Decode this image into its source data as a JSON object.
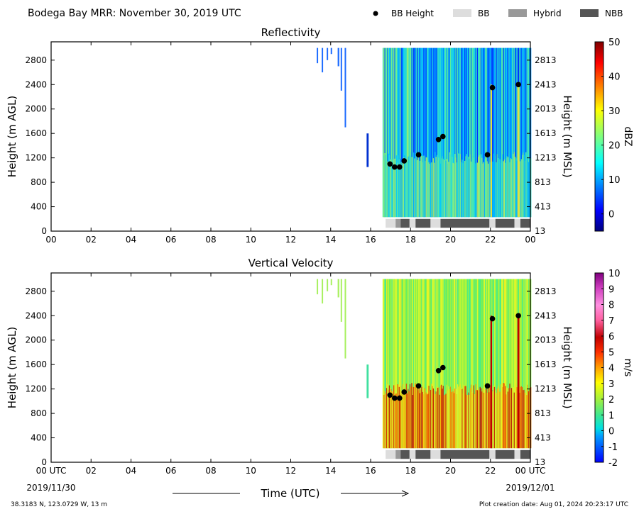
{
  "header": {
    "title": "Bodega Bay MRR:  November 30, 2019 UTC",
    "legend": [
      {
        "label": "BB Height",
        "kind": "marker",
        "color": "#000000"
      },
      {
        "label": "BB",
        "kind": "swatch",
        "color": "#dddddd"
      },
      {
        "label": "Hybrid",
        "kind": "swatch",
        "color": "#999999"
      },
      {
        "label": "NBB",
        "kind": "swatch",
        "color": "#555555"
      }
    ]
  },
  "footer": {
    "location": "38.3183 N, 123.0729 W, 13 m",
    "creation": "Plot creation date: Aug 01, 2024 20:23:17 UTC",
    "time_label": "Time (UTC)",
    "start_date": "2019/11/30",
    "end_date": "2019/12/01"
  },
  "chart_data": [
    {
      "type": "heatmap",
      "title": "Reflectivity",
      "ylabel": "Height (m AGL)",
      "ylabel_right": "Height (m MSL)",
      "colorbar_label": "dBZ",
      "x_ticks": [
        "00",
        "02",
        "04",
        "06",
        "08",
        "10",
        "12",
        "14",
        "16",
        "18",
        "20",
        "22",
        "00"
      ],
      "xlim": [
        0,
        24
      ],
      "y_ticks": [
        0,
        400,
        800,
        1200,
        1600,
        2000,
        2400,
        2800
      ],
      "y_ticks_right": [
        13,
        413,
        813,
        1213,
        1613,
        2013,
        2413,
        2813
      ],
      "ylim": [
        0,
        3100
      ],
      "colorbar_range": [
        -5,
        50
      ],
      "colorbar_ticks": [
        0,
        10,
        20,
        30,
        40,
        50
      ],
      "bb_height": [
        {
          "x": 16.97,
          "y": 1100
        },
        {
          "x": 17.2,
          "y": 1050
        },
        {
          "x": 17.45,
          "y": 1050
        },
        {
          "x": 17.68,
          "y": 1150
        },
        {
          "x": 18.4,
          "y": 1250
        },
        {
          "x": 19.4,
          "y": 1500
        },
        {
          "x": 19.62,
          "y": 1550
        },
        {
          "x": 21.85,
          "y": 1250
        },
        {
          "x": 22.1,
          "y": 2350
        },
        {
          "x": 23.4,
          "y": 2400
        }
      ],
      "bb_type_bar": [
        {
          "start": 16.75,
          "end": 17.25,
          "class": "BB"
        },
        {
          "start": 17.25,
          "end": 17.5,
          "class": "Hybrid"
        },
        {
          "start": 17.5,
          "end": 17.95,
          "class": "NBB"
        },
        {
          "start": 17.95,
          "end": 18.25,
          "class": "BB"
        },
        {
          "start": 18.25,
          "end": 19.0,
          "class": "NBB"
        },
        {
          "start": 19.0,
          "end": 19.5,
          "class": "BB"
        },
        {
          "start": 19.5,
          "end": 21.95,
          "class": "NBB"
        },
        {
          "start": 21.95,
          "end": 22.25,
          "class": "BB"
        },
        {
          "start": 22.25,
          "end": 23.2,
          "class": "NBB"
        },
        {
          "start": 23.2,
          "end": 23.5,
          "class": "BB"
        },
        {
          "start": 23.5,
          "end": 24.0,
          "class": "NBB"
        }
      ]
    },
    {
      "type": "heatmap",
      "title": "Vertical Velocity",
      "ylabel": "Height (m AGL)",
      "ylabel_right": "Height (m MSL)",
      "colorbar_label": "m/s",
      "x_ticks": [
        "00 UTC",
        "02",
        "04",
        "06",
        "08",
        "10",
        "12",
        "14",
        "16",
        "18",
        "20",
        "22",
        "00 UTC"
      ],
      "xlim": [
        0,
        24
      ],
      "y_ticks": [
        0,
        400,
        800,
        1200,
        1600,
        2000,
        2400,
        2800
      ],
      "y_ticks_right": [
        13,
        413,
        813,
        1213,
        1613,
        2013,
        2413,
        2813
      ],
      "ylim": [
        0,
        3100
      ],
      "colorbar_range": [
        -2,
        10
      ],
      "colorbar_ticks": [
        -2,
        -1,
        0,
        1,
        2,
        3,
        4,
        5,
        6,
        7,
        8,
        9,
        10
      ],
      "bb_height": [
        {
          "x": 16.97,
          "y": 1100
        },
        {
          "x": 17.2,
          "y": 1050
        },
        {
          "x": 17.45,
          "y": 1050
        },
        {
          "x": 17.68,
          "y": 1150
        },
        {
          "x": 18.4,
          "y": 1250
        },
        {
          "x": 19.4,
          "y": 1500
        },
        {
          "x": 19.62,
          "y": 1550
        },
        {
          "x": 21.85,
          "y": 1250
        },
        {
          "x": 22.1,
          "y": 2350
        },
        {
          "x": 23.4,
          "y": 2400
        }
      ],
      "bb_type_bar": [
        {
          "start": 16.75,
          "end": 17.25,
          "class": "BB"
        },
        {
          "start": 17.25,
          "end": 17.5,
          "class": "Hybrid"
        },
        {
          "start": 17.5,
          "end": 17.95,
          "class": "NBB"
        },
        {
          "start": 17.95,
          "end": 18.25,
          "class": "BB"
        },
        {
          "start": 18.25,
          "end": 19.0,
          "class": "NBB"
        },
        {
          "start": 19.0,
          "end": 19.5,
          "class": "BB"
        },
        {
          "start": 19.5,
          "end": 21.95,
          "class": "NBB"
        },
        {
          "start": 21.95,
          "end": 22.25,
          "class": "BB"
        },
        {
          "start": 22.25,
          "end": 23.2,
          "class": "NBB"
        },
        {
          "start": 23.2,
          "end": 23.5,
          "class": "BB"
        },
        {
          "start": 23.5,
          "end": 24.0,
          "class": "NBB"
        }
      ]
    }
  ]
}
